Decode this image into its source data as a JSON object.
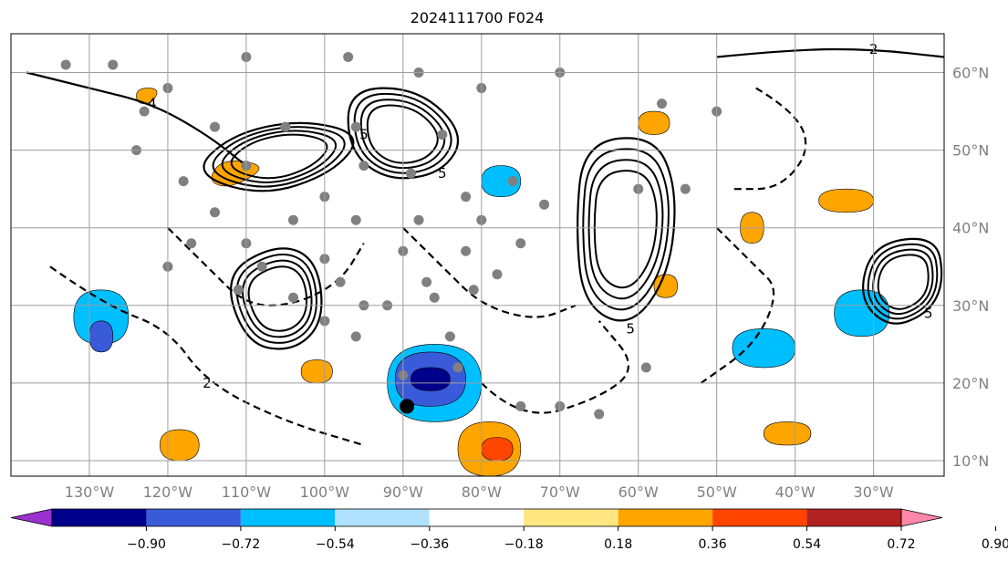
{
  "chart_data": {
    "type": "heatmap",
    "title": "2024111700 F024",
    "xlabel": "",
    "ylabel": "",
    "projection": "equidistant cylindrical map",
    "lon_range": [
      -140,
      -21
    ],
    "lat_range": [
      8,
      65
    ],
    "lon_ticks": [
      -130,
      -120,
      -110,
      -100,
      -90,
      -80,
      -70,
      -60,
      -50,
      -40,
      -30
    ],
    "lon_tick_labels": [
      "130°W",
      "120°W",
      "110°W",
      "100°W",
      "90°W",
      "80°W",
      "70°W",
      "60°W",
      "50°W",
      "40°W",
      "30°W"
    ],
    "lat_ticks": [
      10,
      20,
      30,
      40,
      50,
      60
    ],
    "lat_tick_labels": [
      "10°N",
      "20°N",
      "30°N",
      "40°N",
      "50°N",
      "60°N"
    ],
    "grid": true,
    "colorbar": {
      "orientation": "horizontal",
      "extend": "both",
      "levels": [
        -0.9,
        -0.72,
        -0.54,
        -0.36,
        -0.18,
        0.18,
        0.36,
        0.54,
        0.72,
        0.9
      ],
      "tick_labels": [
        "−0.90",
        "−0.72",
        "−0.54",
        "−0.36",
        "−0.18",
        "0.18",
        "0.36",
        "0.54",
        "0.72",
        "0.90"
      ],
      "colors": [
        "#9b30d0",
        "#00008b",
        "#3a5bd9",
        "#00bfff",
        "#b0e2ff",
        "#ffffff",
        "#ffe680",
        "#ffa500",
        "#ff4500",
        "#b22222",
        "#ff88aa"
      ]
    },
    "shaded_regions": [
      {
        "category": "positive_0.36_0.54",
        "color": "#ffa500",
        "points": [
          [
            -112,
            45
          ],
          [
            -107,
            48
          ],
          [
            -113,
            49
          ],
          [
            -115,
            46
          ]
        ]
      },
      {
        "category": "positive_0.36_0.54",
        "color": "#ffa500",
        "points": [
          [
            -124,
            58
          ],
          [
            -121,
            58
          ],
          [
            -122,
            56
          ],
          [
            -124,
            56
          ]
        ]
      },
      {
        "category": "positive_0.36_0.54",
        "color": "#ffa500",
        "points": [
          [
            -58,
            34
          ],
          [
            -55,
            34
          ],
          [
            -55,
            31
          ],
          [
            -58,
            31
          ]
        ]
      },
      {
        "category": "positive_0.36_0.54",
        "color": "#ffa500",
        "points": [
          [
            -47,
            42
          ],
          [
            -44,
            42
          ],
          [
            -44,
            38
          ],
          [
            -47,
            38
          ]
        ]
      },
      {
        "category": "positive_0.36_0.54",
        "color": "#ffa500",
        "points": [
          [
            -37,
            45
          ],
          [
            -30,
            45
          ],
          [
            -30,
            42
          ],
          [
            -37,
            42
          ]
        ]
      },
      {
        "category": "positive_0.36_0.54",
        "color": "#ffa500",
        "points": [
          [
            -44,
            15
          ],
          [
            -38,
            15
          ],
          [
            -38,
            12
          ],
          [
            -44,
            12
          ]
        ]
      },
      {
        "category": "positive_0.36_0.54",
        "color": "#ffa500",
        "points": [
          [
            -121,
            14
          ],
          [
            -116,
            14
          ],
          [
            -116,
            10
          ],
          [
            -121,
            10
          ]
        ]
      },
      {
        "category": "positive_0.36_0.54",
        "color": "#ffa500",
        "points": [
          [
            -103,
            23
          ],
          [
            -99,
            23
          ],
          [
            -99,
            20
          ],
          [
            -103,
            20
          ]
        ]
      },
      {
        "category": "positive_0.36_0.54",
        "color": "#ffa500",
        "points": [
          [
            -83,
            15
          ],
          [
            -75,
            15
          ],
          [
            -75,
            8
          ],
          [
            -83,
            8
          ]
        ]
      },
      {
        "category": "positive_0.36_0.54",
        "color": "#ffa500",
        "points": [
          [
            -60,
            55
          ],
          [
            -56,
            55
          ],
          [
            -56,
            52
          ],
          [
            -60,
            52
          ]
        ]
      },
      {
        "category": "positive_0.54_0.72",
        "color": "#ff4500",
        "points": [
          [
            -80,
            13
          ],
          [
            -76,
            13
          ],
          [
            -76,
            10
          ],
          [
            -80,
            10
          ]
        ]
      },
      {
        "category": "negative_-0.54_-0.36",
        "color": "#00bfff",
        "points": [
          [
            -132,
            32
          ],
          [
            -125,
            32
          ],
          [
            -125,
            25
          ],
          [
            -132,
            25
          ]
        ]
      },
      {
        "category": "negative_-0.54_-0.36",
        "color": "#00bfff",
        "points": [
          [
            -92,
            25
          ],
          [
            -80,
            25
          ],
          [
            -80,
            15
          ],
          [
            -92,
            15
          ]
        ]
      },
      {
        "category": "negative_-0.54_-0.36",
        "color": "#00bfff",
        "points": [
          [
            -80,
            48
          ],
          [
            -75,
            48
          ],
          [
            -75,
            44
          ],
          [
            -80,
            44
          ]
        ]
      },
      {
        "category": "negative_-0.54_-0.36",
        "color": "#00bfff",
        "points": [
          [
            -48,
            27
          ],
          [
            -40,
            27
          ],
          [
            -40,
            22
          ],
          [
            -48,
            22
          ]
        ]
      },
      {
        "category": "negative_-0.54_-0.36",
        "color": "#00bfff",
        "points": [
          [
            -35,
            32
          ],
          [
            -28,
            32
          ],
          [
            -28,
            26
          ],
          [
            -35,
            26
          ]
        ]
      },
      {
        "category": "negative_-0.72_-0.54",
        "color": "#3a5bd9",
        "points": [
          [
            -91,
            24
          ],
          [
            -82,
            24
          ],
          [
            -82,
            17
          ],
          [
            -91,
            17
          ]
        ]
      },
      {
        "category": "negative_-0.72_-0.54",
        "color": "#3a5bd9",
        "points": [
          [
            -130,
            28
          ],
          [
            -127,
            28
          ],
          [
            -127,
            24
          ],
          [
            -130,
            24
          ]
        ]
      },
      {
        "category": "negative_-0.90_-0.72",
        "color": "#00008b",
        "points": [
          [
            -89,
            22
          ],
          [
            -84,
            22
          ],
          [
            -84,
            19
          ],
          [
            -89,
            19
          ]
        ]
      }
    ],
    "contours": [
      {
        "label": "5",
        "style": "solid",
        "points": [
          [
            -117,
            47
          ],
          [
            -112,
            52
          ],
          [
            -103,
            54
          ],
          [
            -95,
            52
          ],
          [
            -99,
            47
          ],
          [
            -108,
            44
          ],
          [
            -117,
            47
          ]
        ]
      },
      {
        "label": "5",
        "style": "solid",
        "points": [
          [
            -97,
            58
          ],
          [
            -88,
            58
          ],
          [
            -82,
            52
          ],
          [
            -85,
            47
          ],
          [
            -92,
            46
          ],
          [
            -97,
            50
          ],
          [
            -97,
            58
          ]
        ]
      },
      {
        "label": "5",
        "style": "solid",
        "points": [
          [
            -67,
            51
          ],
          [
            -58,
            52
          ],
          [
            -55,
            45
          ],
          [
            -56,
            34
          ],
          [
            -61,
            27
          ],
          [
            -67,
            30
          ],
          [
            -68,
            40
          ],
          [
            -67,
            51
          ]
        ]
      },
      {
        "label": "",
        "style": "solid",
        "points": [
          [
            -113,
            34
          ],
          [
            -106,
            38
          ],
          [
            -101,
            36
          ],
          [
            -100,
            28
          ],
          [
            -104,
            24
          ],
          [
            -110,
            25
          ],
          [
            -113,
            34
          ]
        ]
      },
      {
        "label": "5",
        "style": "solid",
        "points": [
          [
            -30,
            38
          ],
          [
            -22,
            39
          ],
          [
            -21,
            33
          ],
          [
            -23,
            29
          ],
          [
            -28,
            27
          ],
          [
            -32,
            31
          ],
          [
            -30,
            38
          ]
        ]
      },
      {
        "label": "4",
        "style": "solid",
        "points": [
          [
            -138,
            60
          ],
          [
            -130,
            58
          ],
          [
            -122,
            56
          ],
          [
            -115,
            52
          ],
          [
            -110,
            48
          ]
        ]
      },
      {
        "label": "2",
        "style": "solid",
        "points": [
          [
            -50,
            62
          ],
          [
            -40,
            63
          ],
          [
            -30,
            63
          ],
          [
            -21,
            62
          ]
        ]
      },
      {
        "label": "",
        "style": "dashed",
        "points": [
          [
            -120,
            40
          ],
          [
            -115,
            35
          ],
          [
            -110,
            30
          ],
          [
            -104,
            30
          ],
          [
            -98,
            33
          ],
          [
            -95,
            38
          ]
        ]
      },
      {
        "label": "",
        "style": "dashed",
        "points": [
          [
            -90,
            40
          ],
          [
            -85,
            35
          ],
          [
            -80,
            30
          ],
          [
            -73,
            28
          ],
          [
            -68,
            30
          ]
        ]
      },
      {
        "label": "",
        "style": "dashed",
        "points": [
          [
            -50,
            40
          ],
          [
            -45,
            35
          ],
          [
            -42,
            32
          ],
          [
            -45,
            25
          ],
          [
            -52,
            20
          ]
        ]
      },
      {
        "label": "2",
        "style": "dashed",
        "points": [
          [
            -135,
            35
          ],
          [
            -128,
            30
          ],
          [
            -120,
            27
          ],
          [
            -115,
            20
          ],
          [
            -105,
            15
          ],
          [
            -95,
            12
          ]
        ]
      },
      {
        "label": "",
        "style": "dashed",
        "points": [
          [
            -80,
            20
          ],
          [
            -75,
            15
          ],
          [
            -65,
            18
          ],
          [
            -60,
            22
          ],
          [
            -65,
            28
          ]
        ]
      },
      {
        "label": "",
        "style": "dashed",
        "points": [
          [
            -45,
            58
          ],
          [
            -40,
            55
          ],
          [
            -38,
            50
          ],
          [
            -42,
            45
          ],
          [
            -48,
            45
          ]
        ]
      }
    ],
    "stations": [
      [
        -133,
        61
      ],
      [
        -127,
        61
      ],
      [
        -120,
        58
      ],
      [
        -110,
        62
      ],
      [
        -97,
        62
      ],
      [
        -88,
        60
      ],
      [
        -80,
        58
      ],
      [
        -70,
        60
      ],
      [
        -57,
        56
      ],
      [
        -50,
        55
      ],
      [
        -123,
        55
      ],
      [
        -114,
        53
      ],
      [
        -105,
        53
      ],
      [
        -96,
        53
      ],
      [
        -85,
        52
      ],
      [
        -124,
        50
      ],
      [
        -110,
        48
      ],
      [
        -95,
        48
      ],
      [
        -89,
        47
      ],
      [
        -76,
        46
      ],
      [
        -118,
        46
      ],
      [
        -100,
        44
      ],
      [
        -82,
        44
      ],
      [
        -72,
        43
      ],
      [
        -60,
        45
      ],
      [
        -54,
        45
      ],
      [
        -114,
        42
      ],
      [
        -104,
        41
      ],
      [
        -96,
        41
      ],
      [
        -88,
        41
      ],
      [
        -80,
        41
      ],
      [
        -117,
        38
      ],
      [
        -110,
        38
      ],
      [
        -100,
        36
      ],
      [
        -90,
        37
      ],
      [
        -82,
        37
      ],
      [
        -75,
        38
      ],
      [
        -120,
        35
      ],
      [
        -108,
        35
      ],
      [
        -98,
        33
      ],
      [
        -87,
        33
      ],
      [
        -78,
        34
      ],
      [
        -111,
        32
      ],
      [
        -104,
        31
      ],
      [
        -95,
        30
      ],
      [
        -86,
        31
      ],
      [
        -81,
        32
      ],
      [
        -100,
        28
      ],
      [
        -92,
        30
      ],
      [
        -96,
        26
      ],
      [
        -84,
        26
      ],
      [
        -90,
        21
      ],
      [
        -70,
        17
      ],
      [
        -65,
        16
      ],
      [
        -59,
        22
      ],
      [
        -75,
        17
      ],
      [
        -83,
        22
      ]
    ],
    "storm_center": {
      "lon": -89.5,
      "lat": 17
    }
  }
}
